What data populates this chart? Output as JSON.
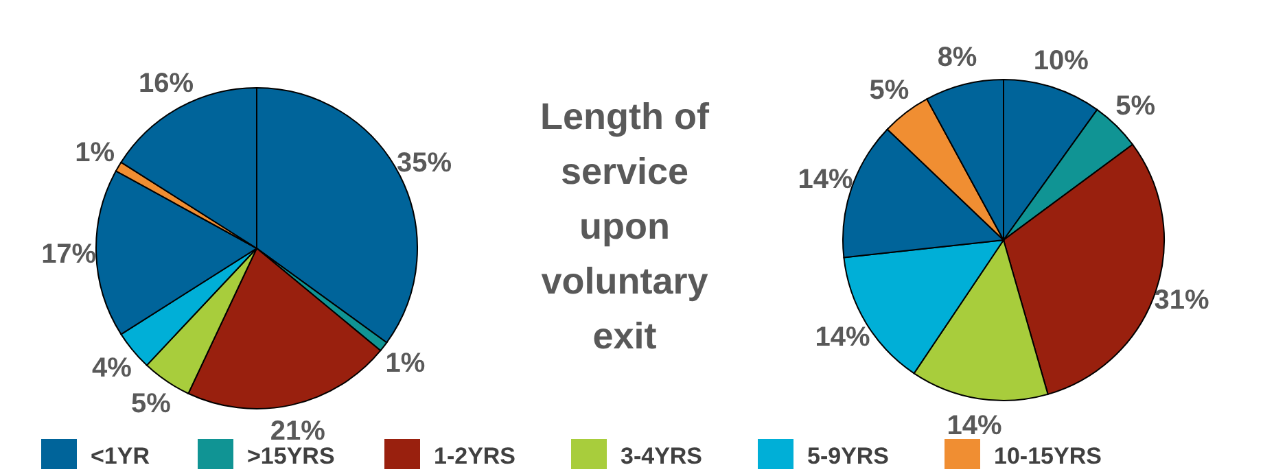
{
  "chart_data": [
    {
      "type": "pie",
      "title": "Length of service upon voluntary exit",
      "legend": "bottom",
      "categories": [
        "<1YR",
        ">15YRS",
        "1-2YRS",
        "3-4YRS",
        "5-9YRS",
        null,
        "10-15YRS",
        null
      ],
      "values": [
        35,
        1,
        21,
        5,
        4,
        17,
        1,
        16
      ],
      "value_labels": [
        "35%",
        "1%",
        "21%",
        "5%",
        "4%",
        "17%",
        "1%",
        "16%"
      ],
      "colors": [
        "#00649a",
        "#109494",
        "#99200e",
        "#a8cd3c",
        "#00afd7",
        "#00649a",
        "#f08e32",
        "#00649a"
      ]
    },
    {
      "type": "pie",
      "categories": [
        null,
        null,
        null,
        null,
        null,
        null,
        null,
        null
      ],
      "values": [
        10,
        5,
        31,
        14,
        14,
        14,
        5,
        8
      ],
      "value_labels": [
        "10%",
        "5%",
        "31%",
        "14%",
        "14%",
        "14%",
        "5%",
        "8%"
      ],
      "colors": [
        "#00649a",
        "#109494",
        "#99200e",
        "#a8cd3c",
        "#00afd7",
        "#00649a",
        "#f08e32",
        "#00649a"
      ]
    }
  ]
}
